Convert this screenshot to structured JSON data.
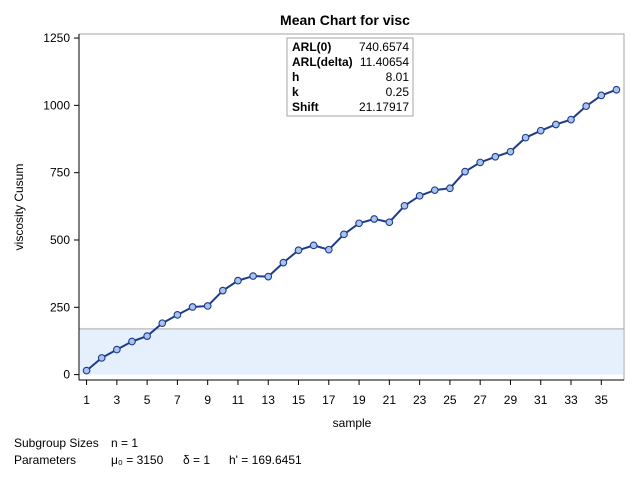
{
  "chart_data": {
    "type": "line",
    "title": "Mean Chart for visc",
    "xlabel": "sample",
    "ylabel": "viscosity Cusum",
    "xlim": [
      0.5,
      36.5
    ],
    "ylim": [
      -20,
      1265
    ],
    "x_ticks": [
      1,
      3,
      5,
      7,
      9,
      11,
      13,
      15,
      17,
      19,
      21,
      23,
      25,
      27,
      29,
      31,
      33,
      35
    ],
    "y_ticks": [
      0,
      250,
      500,
      750,
      1000,
      1250
    ],
    "x_tick_labels": [
      "1",
      "3",
      "5",
      "7",
      "9",
      "11",
      "13",
      "15",
      "17",
      "19",
      "21",
      "23",
      "25",
      "27",
      "29",
      "31",
      "33",
      "35"
    ],
    "y_tick_labels": [
      "0",
      "250",
      "500",
      "750",
      "1000",
      "1250"
    ],
    "decision_limit": 169.6451,
    "series": [
      {
        "x": [
          1,
          2,
          3,
          4,
          5,
          6,
          7,
          8,
          9,
          10,
          11,
          12,
          13,
          14,
          15,
          16,
          17,
          18,
          19,
          20,
          21,
          22,
          23,
          24,
          25,
          26,
          27,
          28,
          29,
          30,
          31,
          32,
          33,
          34,
          35,
          36
        ],
        "values": [
          15,
          62,
          93,
          123,
          143,
          191,
          222,
          251,
          255,
          312,
          349,
          366,
          364,
          416,
          462,
          480,
          464,
          521,
          562,
          578,
          566,
          627,
          664,
          685,
          692,
          754,
          788,
          809,
          828,
          880,
          906,
          929,
          947,
          997,
          1037,
          1058
        ]
      }
    ],
    "colors": {
      "line": "#1f3b8c",
      "marker_fill": "#a8c4ec",
      "band_fill": "#e6f0fd",
      "band_edge": "#a9a9a9"
    },
    "inset_table": [
      {
        "key": "ARL(0)",
        "value": "740.6574"
      },
      {
        "key": "ARL(delta)",
        "value": "11.40654"
      },
      {
        "key": "h",
        "value": "8.01"
      },
      {
        "key": "k",
        "value": "0.25"
      },
      {
        "key": "Shift",
        "value": "21.17917"
      }
    ],
    "footer": {
      "subgroup_label": "Subgroup Sizes",
      "subgroup_value": "n = 1",
      "parameters_label": "Parameters",
      "mu0": "μ₀ = 3150",
      "delta": "δ = 1",
      "hprime": "h' = 169.6451"
    }
  }
}
